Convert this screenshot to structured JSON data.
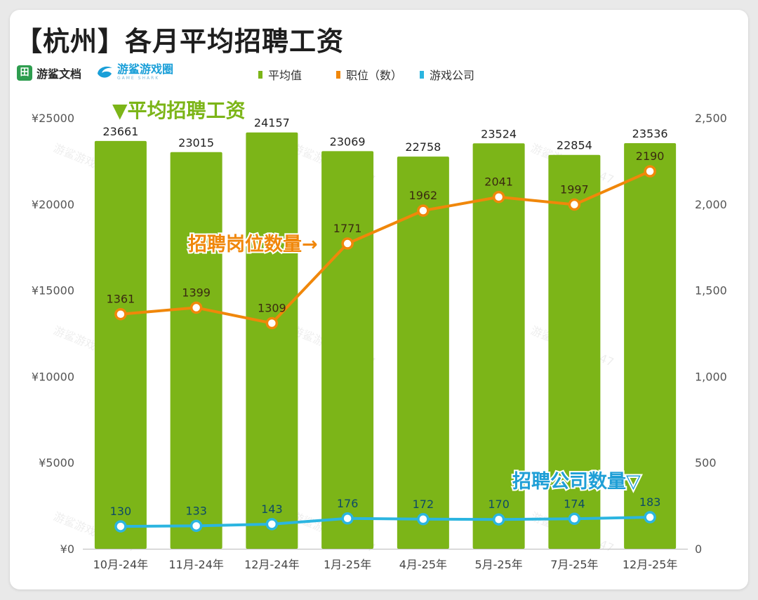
{
  "title": "【杭州】各月平均招聘工资",
  "logos": {
    "brand1_icon": "田",
    "brand1_name": "游鲨文档",
    "brand2_name": "游鲨游戏圈",
    "brand2_sub": "GAME SHARK"
  },
  "legend": [
    {
      "label": "平均值",
      "color": "#7cb518"
    },
    {
      "label": "职位（数）",
      "color": "#f0870a"
    },
    {
      "label": "游戏公司",
      "color": "#2bb5e0"
    }
  ],
  "annotations": {
    "salary": "▼平均招聘工资",
    "jobs": "招聘岗位数量→",
    "companies": "招聘公司数量▽"
  },
  "watermark": "游鲨游戏圈·2147",
  "chart_data": {
    "type": "bar",
    "title": "【杭州】各月平均招聘工资",
    "categories": [
      "10月-24年",
      "11月-24年",
      "12月-24年",
      "1月-25年",
      "4月-25年",
      "5月-25年",
      "7月-25年",
      "12月-25年"
    ],
    "series": [
      {
        "name": "平均值",
        "type": "bar",
        "axis": "left",
        "color": "#7cb518",
        "values": [
          23661,
          23015,
          24157,
          23069,
          22758,
          23524,
          22854,
          23536
        ]
      },
      {
        "name": "职位（数）",
        "type": "line",
        "axis": "right",
        "color": "#f0870a",
        "values": [
          1361,
          1399,
          1309,
          1771,
          1962,
          2041,
          1997,
          2190
        ]
      },
      {
        "name": "游戏公司",
        "type": "line",
        "axis": "right",
        "color": "#2bb5e0",
        "values": [
          130,
          133,
          143,
          176,
          172,
          170,
          174,
          183
        ]
      }
    ],
    "y_left": {
      "range": [
        0,
        25000
      ],
      "ticks": [
        0,
        5000,
        10000,
        15000,
        20000,
        25000
      ],
      "tick_labels": [
        "¥0",
        "¥5000",
        "¥10000",
        "¥15000",
        "¥20000",
        "¥25000"
      ]
    },
    "y_right": {
      "range": [
        0,
        2500
      ],
      "ticks": [
        0,
        500,
        1000,
        1500,
        2000,
        2500
      ],
      "tick_labels": [
        "0",
        "500",
        "1,000",
        "1,500",
        "2,000",
        "2,500"
      ]
    },
    "xlabel": "",
    "ylabel": "",
    "grid": false,
    "legend_position": "top"
  }
}
